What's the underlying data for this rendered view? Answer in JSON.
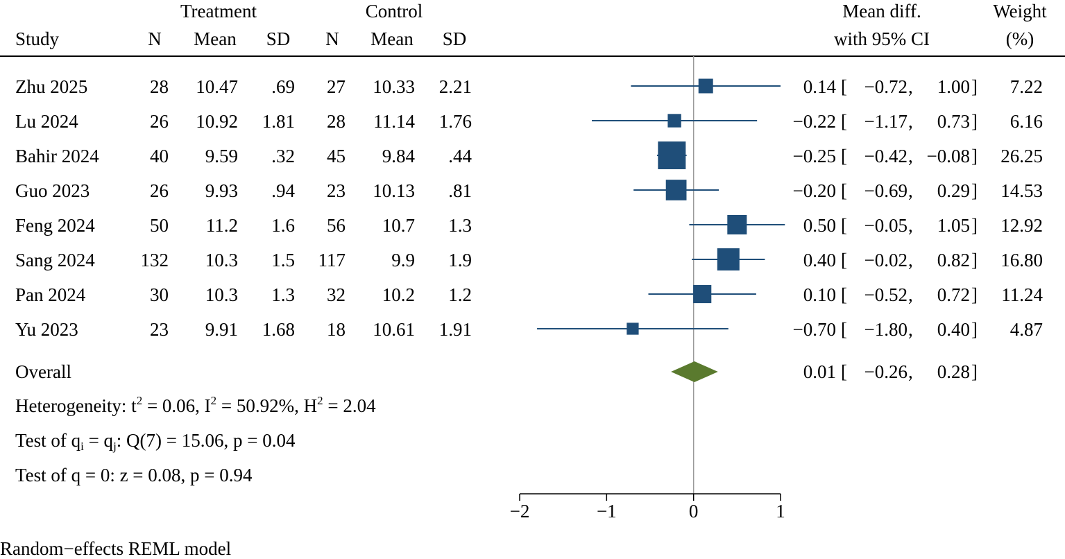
{
  "chart_data": {
    "type": "forest",
    "headers": {
      "treatment_group": "Treatment",
      "control_group": "Control",
      "study": "Study",
      "n_t": "N",
      "mean_t": "Mean",
      "sd_t": "SD",
      "n_c": "N",
      "mean_c": "Mean",
      "sd_c": "SD",
      "effect_line1": "Mean diff.",
      "effect_line2": "with 95% CI",
      "weight_line1": "Weight",
      "weight_line2": "(%)"
    },
    "studies": [
      {
        "study": "Zhu 2025",
        "n_t": "28",
        "mean_t": "10.47",
        "sd_t": ".69",
        "n_c": "27",
        "mean_c": "10.33",
        "sd_c": "2.21",
        "effect": 0.14,
        "ci_low": -0.72,
        "ci_high": 1.0,
        "effect_label": "0.14",
        "ci_low_label": "−0.72",
        "ci_high_label": "1.00",
        "weight": 7.22,
        "weight_label": "7.22"
      },
      {
        "study": "Lu 2024",
        "n_t": "26",
        "mean_t": "10.92",
        "sd_t": "1.81",
        "n_c": "28",
        "mean_c": "11.14",
        "sd_c": "1.76",
        "effect": -0.22,
        "ci_low": -1.17,
        "ci_high": 0.73,
        "effect_label": "−0.22",
        "ci_low_label": "−1.17",
        "ci_high_label": "0.73",
        "weight": 6.16,
        "weight_label": "6.16"
      },
      {
        "study": "Bahir 2024",
        "n_t": "40",
        "mean_t": "9.59",
        "sd_t": ".32",
        "n_c": "45",
        "mean_c": "9.84",
        "sd_c": ".44",
        "effect": -0.25,
        "ci_low": -0.42,
        "ci_high": -0.08,
        "effect_label": "−0.25",
        "ci_low_label": "−0.42",
        "ci_high_label": "−0.08",
        "weight": 26.25,
        "weight_label": "26.25"
      },
      {
        "study": "Guo 2023",
        "n_t": "26",
        "mean_t": "9.93",
        "sd_t": ".94",
        "n_c": "23",
        "mean_c": "10.13",
        "sd_c": ".81",
        "effect": -0.2,
        "ci_low": -0.69,
        "ci_high": 0.29,
        "effect_label": "−0.20",
        "ci_low_label": "−0.69",
        "ci_high_label": "0.29",
        "weight": 14.53,
        "weight_label": "14.53"
      },
      {
        "study": "Feng 2024",
        "n_t": "50",
        "mean_t": "11.2",
        "sd_t": "1.6",
        "n_c": "56",
        "mean_c": "10.7",
        "sd_c": "1.3",
        "effect": 0.5,
        "ci_low": -0.05,
        "ci_high": 1.05,
        "effect_label": "0.50",
        "ci_low_label": "−0.05",
        "ci_high_label": "1.05",
        "weight": 12.92,
        "weight_label": "12.92"
      },
      {
        "study": "Sang 2024",
        "n_t": "132",
        "mean_t": "10.3",
        "sd_t": "1.5",
        "n_c": "117",
        "mean_c": "9.9",
        "sd_c": "1.9",
        "effect": 0.4,
        "ci_low": -0.02,
        "ci_high": 0.82,
        "effect_label": "0.40",
        "ci_low_label": "−0.02",
        "ci_high_label": "0.82",
        "weight": 16.8,
        "weight_label": "16.80"
      },
      {
        "study": "Pan 2024",
        "n_t": "30",
        "mean_t": "10.3",
        "sd_t": "1.3",
        "n_c": "32",
        "mean_c": "10.2",
        "sd_c": "1.2",
        "effect": 0.1,
        "ci_low": -0.52,
        "ci_high": 0.72,
        "effect_label": "0.10",
        "ci_low_label": "−0.52",
        "ci_high_label": "0.72",
        "weight": 11.24,
        "weight_label": "11.24"
      },
      {
        "study": "Yu 2023",
        "n_t": "23",
        "mean_t": "9.91",
        "sd_t": "1.68",
        "n_c": "18",
        "mean_c": "10.61",
        "sd_c": "1.91",
        "effect": -0.7,
        "ci_low": -1.8,
        "ci_high": 0.4,
        "effect_label": "−0.70",
        "ci_low_label": "−1.80",
        "ci_high_label": "0.40",
        "weight": 4.87,
        "weight_label": "4.87"
      }
    ],
    "overall": {
      "label": "Overall",
      "effect": 0.01,
      "ci_low": -0.26,
      "ci_high": 0.28,
      "effect_label": "0.01",
      "ci_low_label": "−0.26",
      "ci_high_label": "0.28"
    },
    "stats": {
      "het_prefix": "Heterogeneity: t",
      "het_sup1": "2",
      "het_mid1": " = 0.06, I",
      "het_sup2": "2",
      "het_mid2": " = 50.92%, H",
      "het_sup3": "2",
      "het_end": " = 2.04",
      "q_prefix": "Test of q",
      "q_sub1": "i",
      "q_mid": " = q",
      "q_sub2": "j",
      "q_end": ": Q(7) = 15.06, p = 0.04",
      "z_test": "Test of q = 0: z = 0.08, p = 0.94"
    },
    "x_axis": {
      "ticks": [
        -2,
        -1,
        0,
        1
      ],
      "tick_labels": [
        "−2",
        "−1",
        "0",
        "1"
      ],
      "xlim": [
        -2,
        1
      ]
    },
    "reference_line": 0,
    "model_note": "Random−effects REML model",
    "colors": {
      "marker": "#1f4e79",
      "diamond": "#5a7a2e",
      "reference_line": "#999999"
    }
  }
}
